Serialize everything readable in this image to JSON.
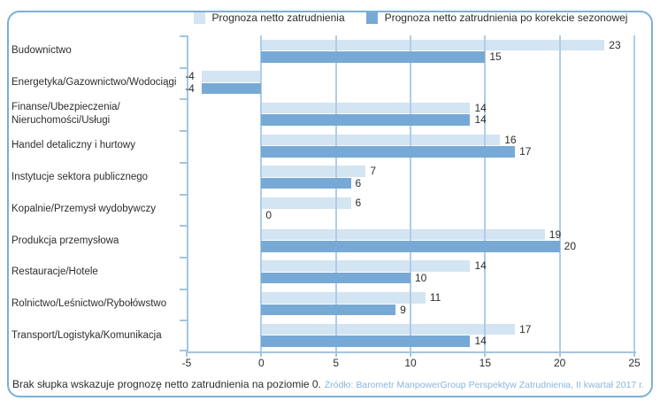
{
  "legend": {
    "items": [
      {
        "label": "Prognoza netto zatrudnienia"
      },
      {
        "label": "Prognoza netto zatrudnienia po korekcie sezonowej"
      }
    ]
  },
  "chart_data": {
    "type": "bar",
    "orientation": "horizontal",
    "categories": [
      [
        "Budownictwo"
      ],
      [
        "Energetyka/Gazownictwo/Wodociągi"
      ],
      [
        "Finanse/Ubezpieczenia/",
        "Nieruchomości/Usługi"
      ],
      [
        "Handel detaliczny i hurtowy"
      ],
      [
        "Instytucje sektora publicznego"
      ],
      [
        "Kopalnie/Przemysł wydobywczy"
      ],
      [
        "Produkcja przemysłowa"
      ],
      [
        "Restauracje/Hotele"
      ],
      [
        "Rolnictwo/Leśnictwo/Rybołówstwo"
      ],
      [
        "Transport/Logistyka/Komunikacja"
      ]
    ],
    "series": [
      {
        "name": "Prognoza netto zatrudnienia",
        "color": "#D3E4F3",
        "values": [
          23,
          -4,
          14,
          16,
          7,
          6,
          19,
          14,
          11,
          17
        ]
      },
      {
        "name": "Prognoza netto zatrudnienia po korekcie sezonowej",
        "color": "#77A9D6",
        "values": [
          15,
          -4,
          14,
          17,
          6,
          0,
          20,
          10,
          9,
          14
        ]
      }
    ],
    "xlim": [
      -5,
      25
    ],
    "xticks": [
      -5,
      0,
      5,
      10,
      15,
      20,
      25
    ],
    "grid": true,
    "legend_position": "top",
    "title": "",
    "xlabel": "",
    "ylabel": ""
  },
  "footer": {
    "note": "Brak słupka wskazuje prognozę netto zatrudnienia na poziomie 0.",
    "source": "Źródło: Barometr ManpowerGroup Perspektyw Zatrudnienia, II kwartał 2017 r."
  },
  "colors": {
    "bar_light": "#D3E4F3",
    "bar_dark": "#77A9D6",
    "grid": "#AFCDE5",
    "axis": "#A3C5DF",
    "card_border": "#7CB0D6",
    "text": "#2D2D2D",
    "source_text": "#8AB6DB"
  }
}
